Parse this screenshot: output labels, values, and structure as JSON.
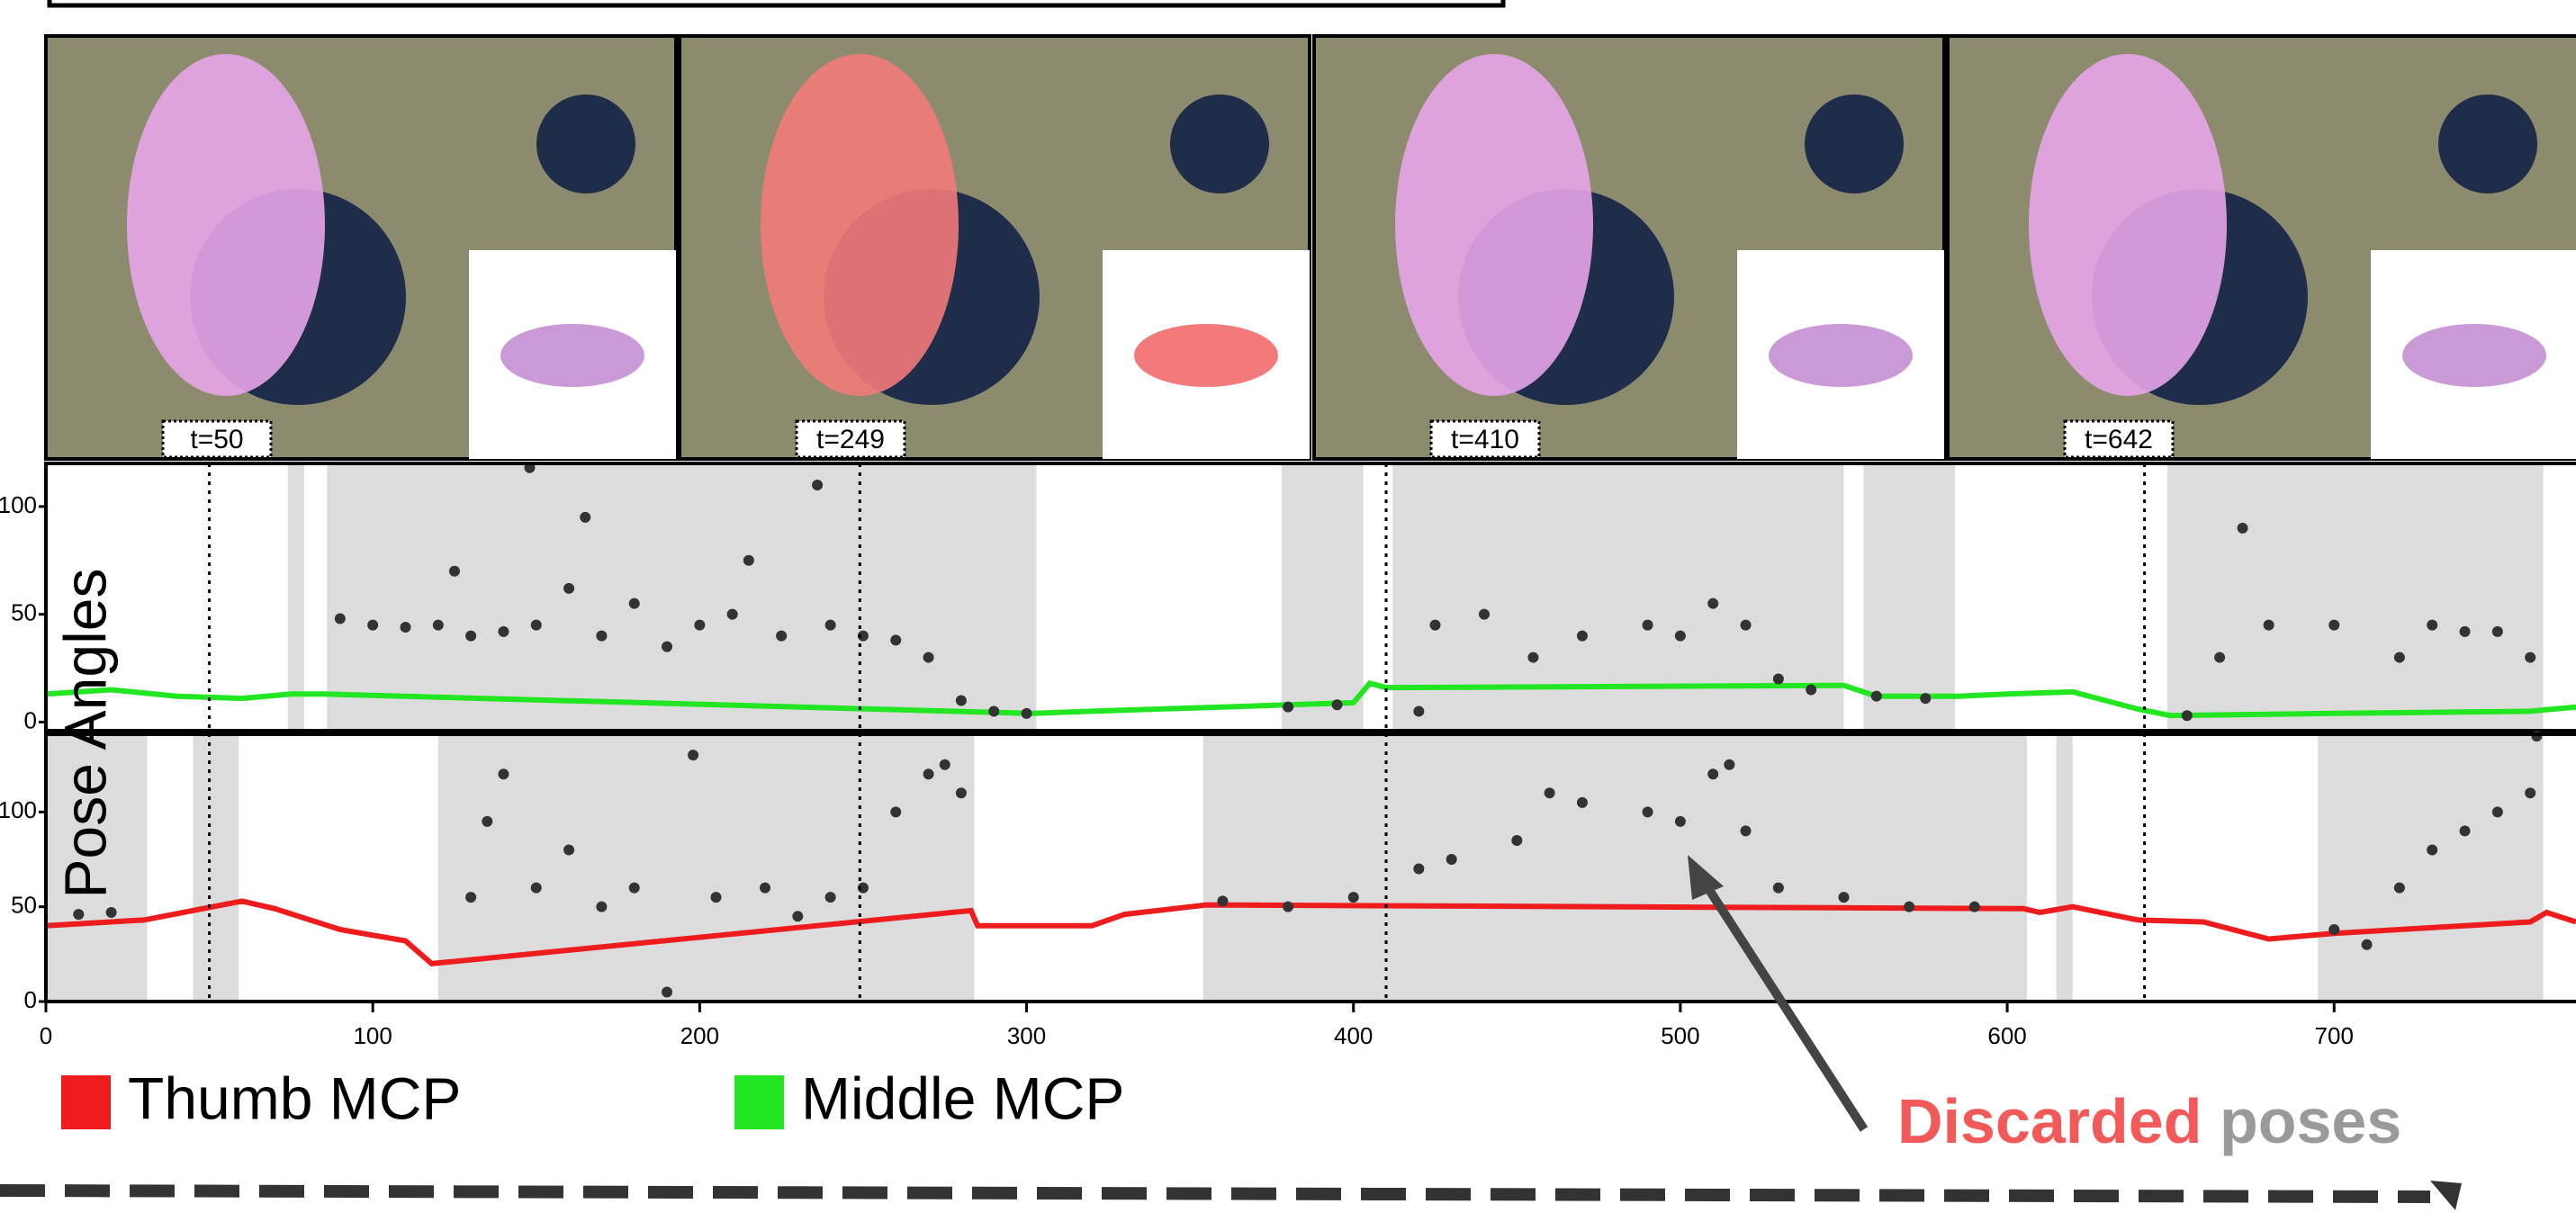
{
  "frames": [
    {
      "label": "t=50",
      "t": 50
    },
    {
      "label": "t=249",
      "t": 249
    },
    {
      "label": "t=410",
      "t": 410
    },
    {
      "label": "t=642",
      "t": 642
    }
  ],
  "chart_data": [
    {
      "type": "line",
      "ylabel": "Pose Angles",
      "xlim": [
        0,
        774
      ],
      "ylim": [
        -4,
        120
      ],
      "yticks": [
        0,
        50,
        100
      ],
      "shaded_ranges": [
        [
          74,
          79
        ],
        [
          86,
          303
        ],
        [
          378,
          403
        ],
        [
          412,
          550
        ],
        [
          556,
          584
        ],
        [
          649,
          764
        ]
      ],
      "series": [
        {
          "name": "Middle MCP",
          "color": "#22e622",
          "x": [
            0,
            20,
            40,
            60,
            75,
            85,
            302,
            320,
            340,
            360,
            380,
            400,
            405,
            410,
            550,
            560,
            585,
            600,
            620,
            640,
            650,
            700,
            760,
            774
          ],
          "values": [
            13,
            15,
            12,
            11,
            13,
            13,
            4,
            5,
            6,
            7,
            8,
            9,
            18,
            16,
            17,
            12,
            12,
            13,
            14,
            6,
            3,
            4,
            5,
            7
          ]
        },
        {
          "type": "scatter",
          "color": "#333333",
          "x": [
            90,
            100,
            110,
            120,
            125,
            130,
            140,
            148,
            150,
            160,
            165,
            170,
            180,
            190,
            200,
            210,
            215,
            225,
            236,
            240,
            250,
            260,
            270,
            280,
            290,
            300,
            380,
            395,
            420,
            425,
            440,
            455,
            470,
            490,
            500,
            510,
            520,
            530,
            540,
            560,
            575,
            655,
            665,
            672,
            680,
            700,
            720,
            730,
            740,
            750,
            760
          ],
          "values": [
            48,
            45,
            44,
            45,
            70,
            40,
            42,
            118,
            45,
            62,
            95,
            40,
            55,
            35,
            45,
            50,
            75,
            40,
            110,
            45,
            40,
            38,
            30,
            10,
            5,
            4,
            7,
            8,
            5,
            45,
            50,
            30,
            40,
            45,
            40,
            55,
            45,
            20,
            15,
            12,
            11,
            3,
            30,
            90,
            45,
            45,
            30,
            45,
            42,
            42,
            30
          ]
        }
      ]
    },
    {
      "type": "line",
      "xlim": [
        0,
        774
      ],
      "ylim": [
        0,
        141
      ],
      "yticks": [
        0,
        50,
        100
      ],
      "xticks": [
        0,
        100,
        200,
        300,
        400,
        500,
        600,
        700
      ],
      "shaded_ranges": [
        [
          0,
          31
        ],
        [
          45,
          59
        ],
        [
          120,
          284
        ],
        [
          354,
          606
        ],
        [
          615,
          620
        ],
        [
          695,
          764
        ]
      ],
      "series": [
        {
          "name": "Thumb MCP",
          "color": "#ee1c1c",
          "x": [
            0,
            30,
            60,
            70,
            90,
            110,
            118,
            283,
            285,
            300,
            320,
            330,
            355,
            605,
            610,
            620,
            640,
            660,
            680,
            700,
            760,
            765,
            774
          ],
          "values": [
            40,
            43,
            53,
            49,
            38,
            32,
            20,
            48,
            40,
            40,
            40,
            46,
            51,
            49,
            47,
            50,
            43,
            42,
            33,
            36,
            42,
            47,
            42
          ]
        },
        {
          "type": "scatter",
          "color": "#333333",
          "x": [
            10,
            20,
            130,
            135,
            140,
            150,
            160,
            170,
            180,
            190,
            198,
            205,
            220,
            230,
            240,
            250,
            260,
            270,
            275,
            280,
            360,
            380,
            400,
            420,
            430,
            450,
            460,
            470,
            490,
            500,
            510,
            515,
            520,
            530,
            550,
            570,
            590,
            700,
            710,
            720,
            730,
            740,
            750,
            760,
            762
          ],
          "values": [
            46,
            47,
            55,
            95,
            120,
            60,
            80,
            50,
            60,
            5,
            130,
            55,
            60,
            45,
            55,
            60,
            100,
            120,
            125,
            110,
            53,
            50,
            55,
            70,
            75,
            85,
            110,
            105,
            100,
            95,
            120,
            125,
            90,
            60,
            55,
            50,
            50,
            38,
            30,
            60,
            80,
            90,
            100,
            110,
            140
          ]
        }
      ]
    }
  ],
  "annotation": {
    "highlight": "Discarded",
    "rest": "poses"
  }
}
